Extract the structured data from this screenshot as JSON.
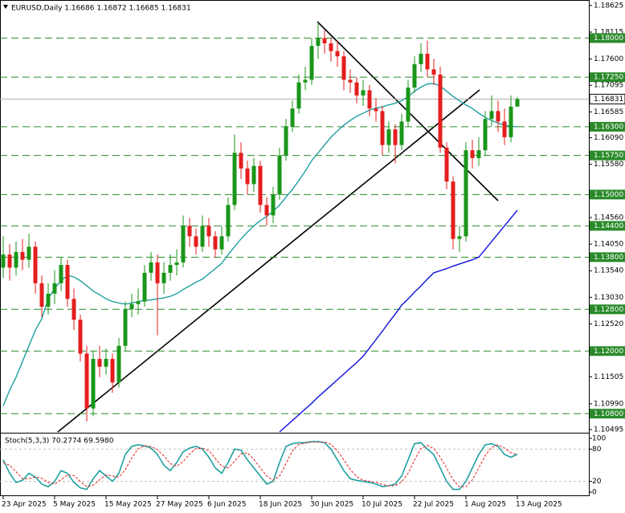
{
  "chart_data": [
    {
      "type": "candlestick",
      "title": "EURUSD,Daily  1.16686 1.16872 1.16685 1.16831",
      "categories": [
        "23 Apr 2025",
        null,
        null,
        null,
        null,
        null,
        null,
        null,
        "5 May 2025",
        null,
        null,
        null,
        null,
        null,
        null,
        null,
        "15 May 2025",
        null,
        null,
        null,
        null,
        null,
        null,
        null,
        "27 May 2025",
        null,
        null,
        null,
        null,
        null,
        null,
        null,
        "6 Jun 2025",
        null,
        null,
        null,
        null,
        null,
        null,
        null,
        "18 Jun 2025",
        null,
        null,
        null,
        null,
        null,
        null,
        null,
        "30 Jun 2025",
        null,
        null,
        null,
        null,
        null,
        null,
        null,
        "10 Jul 2025",
        null,
        null,
        null,
        null,
        null,
        null,
        null,
        "22 Jul 2025",
        null,
        null,
        null,
        null,
        null,
        null,
        null,
        "1 Aug 2025",
        null,
        null,
        null,
        null,
        null,
        null,
        null,
        "13 Aug 2025"
      ],
      "open": [
        1.136,
        1.1385,
        1.136,
        1.139,
        1.1375,
        1.14,
        1.133,
        1.1285,
        1.131,
        1.133,
        1.1365,
        1.13,
        1.126,
        1.1195,
        1.109,
        1.1185,
        1.117,
        1.1185,
        1.114,
        1.121,
        1.128,
        1.129,
        1.1295,
        1.135,
        1.137,
        1.133,
        1.135,
        1.1365,
        1.137,
        1.144,
        1.142,
        1.14,
        1.144,
        1.142,
        1.1395,
        1.142,
        1.148,
        1.158,
        1.155,
        1.152,
        1.1555,
        1.148,
        1.146,
        1.15,
        1.1575,
        1.163,
        1.1665,
        1.1715,
        1.172,
        1.1785,
        1.18,
        1.179,
        1.1775,
        1.1765,
        1.172,
        1.1715,
        1.169,
        1.17,
        1.1665,
        1.166,
        1.1595,
        1.1625,
        1.1595,
        1.164,
        1.1705,
        1.175,
        1.177,
        1.174,
        1.173,
        1.159,
        1.1525,
        1.1415,
        1.142,
        1.1585,
        1.157,
        1.1585,
        1.1645,
        1.166,
        1.164,
        1.161,
        1.16686
      ],
      "high": [
        1.142,
        1.1405,
        1.141,
        1.1415,
        1.1425,
        1.141,
        1.1345,
        1.133,
        1.1355,
        1.138,
        1.1375,
        1.132,
        1.127,
        1.121,
        1.12,
        1.121,
        1.1205,
        1.1195,
        1.1225,
        1.1295,
        1.131,
        1.132,
        1.1365,
        1.139,
        1.1385,
        1.137,
        1.1385,
        1.1395,
        1.146,
        1.1455,
        1.1435,
        1.146,
        1.1455,
        1.143,
        1.144,
        1.1495,
        1.1615,
        1.16,
        1.1565,
        1.157,
        1.1565,
        1.1495,
        1.1515,
        1.159,
        1.1645,
        1.168,
        1.173,
        1.1745,
        1.18,
        1.183,
        1.1815,
        1.18,
        1.1795,
        1.1775,
        1.174,
        1.1725,
        1.172,
        1.171,
        1.1685,
        1.167,
        1.164,
        1.1635,
        1.1655,
        1.172,
        1.1765,
        1.179,
        1.1795,
        1.176,
        1.1745,
        1.16,
        1.1535,
        1.144,
        1.16,
        1.1605,
        1.161,
        1.166,
        1.169,
        1.168,
        1.1665,
        1.169,
        1.16872
      ],
      "low": [
        1.134,
        1.1335,
        1.1345,
        1.1355,
        1.136,
        1.131,
        1.1265,
        1.127,
        1.129,
        1.1315,
        1.1285,
        1.124,
        1.118,
        1.1065,
        1.1075,
        1.115,
        1.1155,
        1.112,
        1.113,
        1.12,
        1.1265,
        1.127,
        1.1285,
        1.1335,
        1.123,
        1.131,
        1.1335,
        1.1345,
        1.136,
        1.14,
        1.1385,
        1.139,
        1.14,
        1.138,
        1.1385,
        1.141,
        1.147,
        1.153,
        1.15,
        1.1505,
        1.1465,
        1.144,
        1.1445,
        1.149,
        1.1565,
        1.162,
        1.1655,
        1.17,
        1.171,
        1.176,
        1.177,
        1.1755,
        1.1745,
        1.17,
        1.1695,
        1.1675,
        1.167,
        1.165,
        1.164,
        1.1575,
        1.158,
        1.156,
        1.1585,
        1.163,
        1.1695,
        1.1735,
        1.1725,
        1.171,
        1.158,
        1.151,
        1.1395,
        1.139,
        1.141,
        1.155,
        1.1555,
        1.1575,
        1.163,
        1.162,
        1.1595,
        1.16,
        1.16685
      ],
      "close": [
        1.1385,
        1.136,
        1.139,
        1.1375,
        1.14,
        1.133,
        1.1285,
        1.131,
        1.133,
        1.1365,
        1.13,
        1.126,
        1.1195,
        1.109,
        1.1185,
        1.117,
        1.1185,
        1.114,
        1.121,
        1.128,
        1.129,
        1.1295,
        1.135,
        1.137,
        1.133,
        1.135,
        1.1365,
        1.137,
        1.144,
        1.142,
        1.14,
        1.144,
        1.142,
        1.1395,
        1.142,
        1.148,
        1.158,
        1.155,
        1.152,
        1.1555,
        1.148,
        1.146,
        1.15,
        1.1575,
        1.163,
        1.1665,
        1.1715,
        1.172,
        1.1785,
        1.18,
        1.179,
        1.1775,
        1.1765,
        1.172,
        1.1715,
        1.169,
        1.17,
        1.1665,
        1.166,
        1.1595,
        1.1625,
        1.1595,
        1.164,
        1.1705,
        1.175,
        1.177,
        1.174,
        1.173,
        1.159,
        1.1525,
        1.1415,
        1.142,
        1.1585,
        1.157,
        1.1585,
        1.1645,
        1.166,
        1.164,
        1.161,
        1.16686,
        1.16831
      ],
      "up_color": "#1a961a",
      "down_color": "#e41e1e",
      "overlays": [
        {
          "color": "#20a0a0",
          "values": [
            1.1095,
            1.1125,
            1.115,
            1.118,
            1.121,
            1.124,
            1.1262,
            1.13,
            1.132,
            1.1335,
            1.1345,
            1.1342,
            1.1335,
            1.1325,
            1.1315,
            1.1308,
            1.13,
            1.1295,
            1.1292,
            1.129,
            1.1292,
            1.1295,
            1.1297,
            1.1298,
            1.13,
            1.1302,
            1.1305,
            1.131,
            1.1318,
            1.1325,
            1.1332,
            1.1338,
            1.1348,
            1.1358,
            1.1368,
            1.1385,
            1.14,
            1.1415,
            1.1428,
            1.144,
            1.145,
            1.1458,
            1.1468,
            1.148,
            1.1495,
            1.151,
            1.1527,
            1.1545,
            1.1565,
            1.158,
            1.1595,
            1.161,
            1.1622,
            1.1633,
            1.1642,
            1.165,
            1.1656,
            1.1662,
            1.1666,
            1.1668,
            1.1672,
            1.1675,
            1.168,
            1.1688,
            1.1698,
            1.1706,
            1.1712,
            1.1713,
            1.1708,
            1.1698,
            1.1688,
            1.168,
            1.1672,
            1.1665,
            1.1656,
            1.1648,
            1.1642,
            1.1637,
            1.1633,
            1.1631,
            1.163
          ]
        },
        {
          "color": "#1010e0",
          "values": [
            null,
            null,
            null,
            null,
            null,
            null,
            null,
            null,
            null,
            null,
            null,
            null,
            null,
            null,
            null,
            null,
            null,
            null,
            null,
            null,
            null,
            null,
            null,
            null,
            null,
            null,
            null,
            null,
            null,
            null,
            null,
            null,
            null,
            null,
            null,
            null,
            null,
            null,
            null,
            null,
            null,
            null,
            null,
            1.1045,
            1.1056,
            1.1067,
            1.1078,
            1.1089,
            1.11,
            1.1112,
            1.1123,
            1.1134,
            1.1145,
            1.1156,
            1.1167,
            1.1178,
            1.119,
            1.1206,
            1.1222,
            1.1238,
            1.1255,
            1.1271,
            1.1288,
            1.13,
            1.1313,
            1.1325,
            1.1338,
            1.135,
            1.1354,
            1.1358,
            1.1363,
            1.1367,
            1.1371,
            1.1375,
            1.138,
            1.1395,
            1.141,
            1.1425,
            1.144,
            1.1455,
            1.147
          ]
        }
      ],
      "ylim": [
        1.1045,
        1.1873
      ],
      "yticks": [
        1.18625,
        1.18115,
        {
          "value": 1.176,
          "label": "1.17600"
        },
        1.17095,
        1.16585,
        {
          "value": 1.1609,
          "label": "1.16090"
        },
        {
          "value": 1.1558,
          "label": "1.15580"
        },
        {
          "value": 1.1456,
          "label": "1.14560"
        },
        {
          "value": 1.1405,
          "label": "1.14050"
        },
        {
          "value": 1.1354,
          "label": "1.13540"
        },
        {
          "value": 1.1303,
          "label": "1.13030"
        },
        {
          "value": 1.1252,
          "label": "1.12520"
        },
        1.11505,
        {
          "value": 1.1099,
          "label": "1.10990"
        },
        1.10495
      ],
      "levels": [
        {
          "value": 1.18,
          "label": "1.18000"
        },
        {
          "value": 1.1725,
          "label": "1.17250"
        },
        {
          "value": 1.163,
          "label": "1.16300"
        },
        {
          "value": 1.1575,
          "label": "1.15750"
        },
        {
          "value": 1.15,
          "label": "1.15000"
        },
        {
          "value": 1.144,
          "label": "1.14400"
        },
        {
          "value": 1.138,
          "label": "1.13800"
        },
        {
          "value": 1.128,
          "label": "1.12800"
        },
        {
          "value": 1.12,
          "label": "1.12000"
        },
        {
          "value": 1.108,
          "label": "1.10800"
        }
      ],
      "level_color": "#2a8a2a",
      "current_price": 1.16831
    },
    {
      "type": "line",
      "title": "Stoch(5,3,3) 70.2774 69.5980",
      "series": [
        {
          "color": "#20a0a0",
          "values": [
            60,
            35,
            18,
            22,
            35,
            28,
            15,
            10,
            20,
            40,
            35,
            18,
            8,
            5,
            25,
            40,
            30,
            20,
            35,
            70,
            85,
            88,
            86,
            82,
            70,
            50,
            40,
            55,
            75,
            82,
            85,
            80,
            65,
            45,
            35,
            55,
            80,
            78,
            60,
            45,
            30,
            15,
            20,
            55,
            85,
            90,
            92,
            92,
            94,
            94,
            92,
            80,
            60,
            40,
            25,
            22,
            20,
            18,
            15,
            10,
            12,
            15,
            30,
            60,
            90,
            92,
            80,
            70,
            45,
            20,
            5,
            5,
            20,
            45,
            70,
            88,
            90,
            85,
            70,
            65,
            70.2774
          ]
        },
        {
          "color": "#e41e1e",
          "dashed": true,
          "values": [
            55,
            50,
            38,
            25,
            25,
            28,
            26,
            18,
            15,
            23,
            32,
            31,
            20,
            10,
            13,
            23,
            32,
            30,
            28,
            42,
            63,
            81,
            86,
            85,
            79,
            67,
            53,
            48,
            57,
            71,
            81,
            82,
            77,
            63,
            48,
            45,
            57,
            71,
            73,
            61,
            45,
            30,
            22,
            30,
            53,
            77,
            89,
            91,
            93,
            93,
            93,
            89,
            77,
            60,
            42,
            29,
            22,
            20,
            18,
            14,
            12,
            12,
            19,
            35,
            60,
            81,
            87,
            81,
            65,
            45,
            23,
            10,
            10,
            23,
            45,
            68,
            83,
            88,
            82,
            73,
            69.598
          ]
        }
      ],
      "ylim": [
        0,
        100
      ],
      "yticks": [
        100,
        80,
        20,
        0
      ],
      "levels": [
        80,
        20
      ]
    }
  ]
}
